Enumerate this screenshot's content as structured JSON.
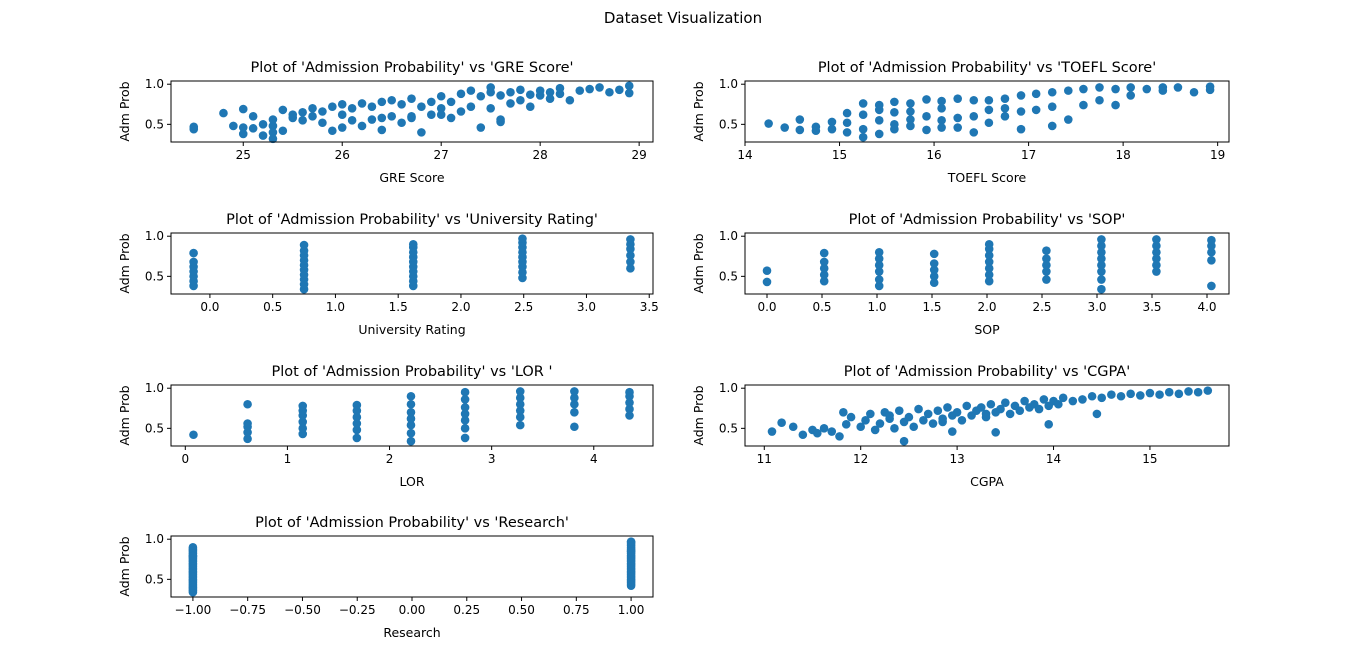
{
  "figure": {
    "title": "Dataset Visualization",
    "marker_color": "#1f77b4"
  },
  "chart_data": [
    {
      "type": "scatter",
      "title": "Plot of 'Admission Probability' vs 'GRE Score'",
      "xlabel": "GRE Score",
      "ylabel": "Adm Prob",
      "xlim": [
        24.27,
        29.14
      ],
      "ylim": [
        0.28,
        1.04
      ],
      "xticks": [
        25,
        26,
        27,
        28,
        29
      ],
      "xtick_labels": [
        "25",
        "26",
        "27",
        "28",
        "29"
      ],
      "yticks": [
        0.5,
        1.0
      ],
      "ytick_labels": [
        "0.5",
        "1.0"
      ],
      "x": [
        24.5,
        24.5,
        24.8,
        24.9,
        25.0,
        25.0,
        25.0,
        25.1,
        25.1,
        25.2,
        25.2,
        25.3,
        25.3,
        25.3,
        25.3,
        25.4,
        25.4,
        25.5,
        25.5,
        25.6,
        25.6,
        25.7,
        25.7,
        25.8,
        25.8,
        25.9,
        25.9,
        26.0,
        26.0,
        26.0,
        26.1,
        26.1,
        26.2,
        26.2,
        26.3,
        26.3,
        26.4,
        26.4,
        26.4,
        26.5,
        26.5,
        26.6,
        26.6,
        26.7,
        26.7,
        26.8,
        26.8,
        26.9,
        26.9,
        27.0,
        27.0,
        27.1,
        27.1,
        27.2,
        27.2,
        27.3,
        27.3,
        27.4,
        27.4,
        27.5,
        27.5,
        27.6,
        27.6,
        27.7,
        27.7,
        27.8,
        27.8,
        27.9,
        27.9,
        28.0,
        28.0,
        28.1,
        28.1,
        28.2,
        28.2,
        28.3,
        28.4,
        28.5,
        28.6,
        28.7,
        28.8,
        28.9,
        28.9,
        27.6,
        27.5,
        27.0,
        26.7
      ],
      "y": [
        0.47,
        0.44,
        0.64,
        0.48,
        0.69,
        0.46,
        0.38,
        0.45,
        0.6,
        0.5,
        0.36,
        0.48,
        0.4,
        0.32,
        0.56,
        0.68,
        0.42,
        0.58,
        0.62,
        0.65,
        0.55,
        0.6,
        0.7,
        0.66,
        0.52,
        0.42,
        0.72,
        0.62,
        0.46,
        0.75,
        0.55,
        0.7,
        0.48,
        0.76,
        0.56,
        0.72,
        0.58,
        0.78,
        0.43,
        0.6,
        0.8,
        0.52,
        0.75,
        0.58,
        0.82,
        0.72,
        0.4,
        0.62,
        0.78,
        0.7,
        0.85,
        0.58,
        0.78,
        0.66,
        0.88,
        0.72,
        0.92,
        0.46,
        0.85,
        0.7,
        0.9,
        0.56,
        0.86,
        0.76,
        0.9,
        0.8,
        0.93,
        0.72,
        0.87,
        0.86,
        0.92,
        0.82,
        0.9,
        0.88,
        0.95,
        0.8,
        0.92,
        0.94,
        0.96,
        0.9,
        0.93,
        0.98,
        0.89,
        0.53,
        0.96,
        0.62,
        0.6
      ]
    },
    {
      "type": "scatter",
      "title": "Plot of 'Admission Probability' vs 'TOEFL Score'",
      "xlabel": "TOEFL Score",
      "ylabel": "Adm Prob",
      "xlim": [
        14.0,
        19.12
      ],
      "ylim": [
        0.28,
        1.04
      ],
      "xticks": [
        14,
        15,
        16,
        17,
        18,
        19
      ],
      "xtick_labels": [
        "14",
        "15",
        "16",
        "17",
        "18",
        "19"
      ],
      "yticks": [
        0.5,
        1.0
      ],
      "ytick_labels": [
        "0.5",
        "1.0"
      ],
      "x": [
        14.25,
        14.42,
        14.58,
        14.58,
        14.75,
        14.75,
        14.92,
        14.92,
        15.08,
        15.08,
        15.08,
        15.25,
        15.25,
        15.25,
        15.25,
        15.42,
        15.42,
        15.42,
        15.42,
        15.58,
        15.58,
        15.58,
        15.58,
        15.75,
        15.75,
        15.75,
        15.75,
        15.92,
        15.92,
        15.92,
        16.08,
        16.08,
        16.08,
        16.08,
        16.25,
        16.25,
        16.25,
        16.42,
        16.42,
        16.42,
        16.58,
        16.58,
        16.58,
        16.75,
        16.75,
        16.75,
        16.92,
        16.92,
        16.92,
        17.08,
        17.08,
        17.25,
        17.25,
        17.25,
        17.42,
        17.42,
        17.58,
        17.58,
        17.75,
        17.75,
        17.92,
        17.92,
        18.08,
        18.08,
        18.25,
        18.42,
        18.42,
        18.58,
        18.75,
        18.92,
        18.92
      ],
      "y": [
        0.51,
        0.46,
        0.56,
        0.43,
        0.47,
        0.42,
        0.53,
        0.44,
        0.64,
        0.4,
        0.52,
        0.76,
        0.44,
        0.34,
        0.62,
        0.74,
        0.38,
        0.55,
        0.68,
        0.78,
        0.5,
        0.44,
        0.65,
        0.76,
        0.56,
        0.48,
        0.66,
        0.81,
        0.6,
        0.43,
        0.79,
        0.55,
        0.46,
        0.7,
        0.82,
        0.58,
        0.46,
        0.8,
        0.6,
        0.4,
        0.8,
        0.52,
        0.68,
        0.82,
        0.6,
        0.7,
        0.86,
        0.66,
        0.44,
        0.88,
        0.68,
        0.9,
        0.72,
        0.48,
        0.92,
        0.56,
        0.94,
        0.74,
        0.96,
        0.8,
        0.94,
        0.74,
        0.96,
        0.86,
        0.94,
        0.96,
        0.92,
        0.96,
        0.9,
        0.97,
        0.93
      ]
    },
    {
      "type": "scatter",
      "title": "Plot of 'Admission Probability' vs 'University Rating'",
      "xlabel": "University Rating",
      "ylabel": "Adm Prob",
      "xlim": [
        -0.31,
        3.53
      ],
      "ylim": [
        0.28,
        1.04
      ],
      "xticks": [
        0.0,
        0.5,
        1.0,
        1.5,
        2.0,
        2.5,
        3.0,
        3.5
      ],
      "xtick_labels": [
        "0.0",
        "0.5",
        "1.0",
        "1.5",
        "2.0",
        "2.5",
        "3.0",
        "3.5"
      ],
      "yticks": [
        0.5,
        1.0
      ],
      "ytick_labels": [
        "0.5",
        "1.0"
      ],
      "x": [
        -0.13,
        -0.13,
        -0.13,
        -0.13,
        -0.13,
        -0.13,
        -0.13,
        0.75,
        0.75,
        0.75,
        0.75,
        0.75,
        0.75,
        0.75,
        0.75,
        0.75,
        0.75,
        1.62,
        1.62,
        1.62,
        1.62,
        1.62,
        1.62,
        1.62,
        1.62,
        1.62,
        1.62,
        2.49,
        2.49,
        2.49,
        2.49,
        2.49,
        2.49,
        2.49,
        2.49,
        2.49,
        3.35,
        3.35,
        3.35,
        3.35,
        3.35,
        3.35
      ],
      "y": [
        0.38,
        0.44,
        0.5,
        0.56,
        0.62,
        0.68,
        0.79,
        0.34,
        0.4,
        0.46,
        0.52,
        0.58,
        0.64,
        0.7,
        0.76,
        0.82,
        0.89,
        0.38,
        0.44,
        0.5,
        0.56,
        0.62,
        0.68,
        0.74,
        0.8,
        0.86,
        0.9,
        0.48,
        0.55,
        0.62,
        0.68,
        0.74,
        0.8,
        0.86,
        0.92,
        0.97,
        0.6,
        0.68,
        0.76,
        0.84,
        0.9,
        0.96
      ]
    },
    {
      "type": "scatter",
      "title": "Plot of 'Admission Probability' vs 'SOP'",
      "xlabel": "SOP",
      "ylabel": "Adm Prob",
      "xlim": [
        -0.2,
        4.2
      ],
      "ylim": [
        0.28,
        1.04
      ],
      "xticks": [
        0.0,
        0.5,
        1.0,
        1.5,
        2.0,
        2.5,
        3.0,
        3.5,
        4.0
      ],
      "xtick_labels": [
        "0.0",
        "0.5",
        "1.0",
        "1.5",
        "2.0",
        "2.5",
        "3.0",
        "3.5",
        "4.0"
      ],
      "yticks": [
        0.5,
        1.0
      ],
      "ytick_labels": [
        "0.5",
        "1.0"
      ],
      "x": [
        0.0,
        0.0,
        0.52,
        0.52,
        0.52,
        0.52,
        0.52,
        1.02,
        1.02,
        1.02,
        1.02,
        1.02,
        1.02,
        1.52,
        1.52,
        1.52,
        1.52,
        1.52,
        2.02,
        2.02,
        2.02,
        2.02,
        2.02,
        2.02,
        2.02,
        2.54,
        2.54,
        2.54,
        2.54,
        2.54,
        3.04,
        3.04,
        3.04,
        3.04,
        3.04,
        3.04,
        3.04,
        3.04,
        3.54,
        3.54,
        3.54,
        3.54,
        3.54,
        3.54,
        4.04,
        4.04,
        4.04,
        4.04,
        4.04
      ],
      "y": [
        0.57,
        0.43,
        0.44,
        0.52,
        0.6,
        0.68,
        0.79,
        0.38,
        0.46,
        0.56,
        0.64,
        0.72,
        0.8,
        0.42,
        0.5,
        0.58,
        0.66,
        0.78,
        0.44,
        0.52,
        0.6,
        0.68,
        0.76,
        0.84,
        0.9,
        0.46,
        0.56,
        0.64,
        0.72,
        0.82,
        0.34,
        0.46,
        0.56,
        0.64,
        0.72,
        0.8,
        0.88,
        0.96,
        0.56,
        0.64,
        0.72,
        0.8,
        0.88,
        0.96,
        0.38,
        0.7,
        0.8,
        0.88,
        0.95
      ]
    },
    {
      "type": "scatter",
      "title": "Plot of 'Admission Probability' vs 'LOR '",
      "xlabel": "LOR",
      "ylabel": "Adm Prob",
      "xlim": [
        -0.14,
        4.58
      ],
      "ylim": [
        0.28,
        1.04
      ],
      "xticks": [
        0,
        1,
        2,
        3,
        4
      ],
      "xtick_labels": [
        "0",
        "1",
        "2",
        "3",
        "4"
      ],
      "yticks": [
        0.5,
        1.0
      ],
      "ytick_labels": [
        "0.5",
        "1.0"
      ],
      "x": [
        0.08,
        0.61,
        0.61,
        0.61,
        0.61,
        0.61,
        1.15,
        1.15,
        1.15,
        1.15,
        1.15,
        1.15,
        1.68,
        1.68,
        1.68,
        1.68,
        1.68,
        1.68,
        2.21,
        2.21,
        2.21,
        2.21,
        2.21,
        2.21,
        2.21,
        2.74,
        2.74,
        2.74,
        2.74,
        2.74,
        2.74,
        2.74,
        3.28,
        3.28,
        3.28,
        3.28,
        3.28,
        3.28,
        3.81,
        3.81,
        3.81,
        3.81,
        3.81,
        4.35,
        4.35,
        4.35,
        4.35,
        4.35
      ],
      "y": [
        0.42,
        0.37,
        0.45,
        0.52,
        0.56,
        0.8,
        0.43,
        0.5,
        0.58,
        0.66,
        0.72,
        0.78,
        0.38,
        0.48,
        0.56,
        0.64,
        0.72,
        0.79,
        0.34,
        0.44,
        0.54,
        0.62,
        0.7,
        0.8,
        0.9,
        0.38,
        0.5,
        0.6,
        0.68,
        0.76,
        0.86,
        0.95,
        0.54,
        0.64,
        0.72,
        0.8,
        0.88,
        0.96,
        0.52,
        0.7,
        0.8,
        0.88,
        0.96,
        0.66,
        0.74,
        0.82,
        0.9,
        0.95
      ]
    },
    {
      "type": "scatter",
      "title": "Plot of 'Admission Probability' vs 'CGPA'",
      "xlabel": "CGPA",
      "ylabel": "Adm Prob",
      "xlim": [
        10.8,
        15.82
      ],
      "ylim": [
        0.28,
        1.04
      ],
      "xticks": [
        11,
        12,
        13,
        14,
        15
      ],
      "xtick_labels": [
        "11",
        "12",
        "13",
        "14",
        "15"
      ],
      "yticks": [
        0.5,
        1.0
      ],
      "ytick_labels": [
        "0.5",
        "1.0"
      ],
      "x": [
        11.08,
        11.18,
        11.3,
        11.4,
        11.5,
        11.55,
        11.62,
        11.7,
        11.78,
        11.82,
        11.85,
        11.9,
        12.0,
        12.05,
        12.1,
        12.15,
        12.2,
        12.25,
        12.3,
        12.35,
        12.4,
        12.45,
        12.5,
        12.55,
        12.6,
        12.65,
        12.7,
        12.75,
        12.8,
        12.85,
        12.9,
        12.95,
        13.0,
        13.05,
        13.1,
        13.15,
        13.2,
        13.25,
        13.3,
        13.35,
        13.4,
        13.45,
        13.5,
        13.55,
        13.6,
        13.65,
        13.7,
        13.75,
        13.8,
        13.85,
        13.9,
        13.95,
        14.0,
        14.05,
        14.1,
        14.2,
        14.3,
        14.4,
        14.45,
        14.5,
        14.6,
        14.7,
        14.8,
        14.9,
        15.0,
        15.1,
        15.2,
        15.3,
        15.4,
        15.5,
        15.6,
        12.45,
        12.95,
        13.4,
        13.95,
        12.3,
        12.85,
        13.3
      ],
      "y": [
        0.46,
        0.57,
        0.52,
        0.42,
        0.48,
        0.44,
        0.5,
        0.46,
        0.4,
        0.7,
        0.55,
        0.64,
        0.52,
        0.6,
        0.68,
        0.48,
        0.56,
        0.7,
        0.62,
        0.5,
        0.72,
        0.58,
        0.64,
        0.52,
        0.74,
        0.6,
        0.68,
        0.56,
        0.72,
        0.62,
        0.76,
        0.66,
        0.7,
        0.6,
        0.78,
        0.66,
        0.72,
        0.76,
        0.64,
        0.8,
        0.7,
        0.74,
        0.82,
        0.68,
        0.78,
        0.72,
        0.84,
        0.76,
        0.8,
        0.74,
        0.86,
        0.78,
        0.84,
        0.8,
        0.88,
        0.84,
        0.86,
        0.9,
        0.68,
        0.88,
        0.92,
        0.9,
        0.93,
        0.91,
        0.94,
        0.92,
        0.95,
        0.93,
        0.96,
        0.95,
        0.97,
        0.34,
        0.46,
        0.45,
        0.55,
        0.66,
        0.58,
        0.68
      ]
    },
    {
      "type": "scatter",
      "title": "Plot of 'Admission Probability' vs 'Research'",
      "xlabel": "Research",
      "ylabel": "Adm Prob",
      "xlim": [
        -1.1,
        1.1
      ],
      "ylim": [
        0.28,
        1.04
      ],
      "xticks": [
        -1.0,
        -0.75,
        -0.5,
        -0.25,
        0.0,
        0.25,
        0.5,
        0.75,
        1.0
      ],
      "xtick_labels": [
        "−1.00",
        "−0.75",
        "−0.50",
        "−0.25",
        "0.00",
        "0.25",
        "0.50",
        "0.75",
        "1.00"
      ],
      "yticks": [
        0.5,
        1.0
      ],
      "ytick_labels": [
        "0.5",
        "1.0"
      ],
      "x": [
        -1.0,
        -1.0,
        -1.0,
        -1.0,
        -1.0,
        -1.0,
        -1.0,
        -1.0,
        -1.0,
        -1.0,
        -1.0,
        -1.0,
        -1.0,
        -1.0,
        -1.0,
        -1.0,
        -1.0,
        -1.0,
        -1.0,
        -1.0,
        -1.0,
        -1.0,
        -1.0,
        -1.0,
        -1.0,
        -1.0,
        -1.0,
        -1.0,
        -1.0,
        -1.0,
        1.0,
        1.0,
        1.0,
        1.0,
        1.0,
        1.0,
        1.0,
        1.0,
        1.0,
        1.0,
        1.0,
        1.0,
        1.0,
        1.0,
        1.0,
        1.0,
        1.0,
        1.0,
        1.0,
        1.0,
        1.0,
        1.0,
        1.0,
        1.0,
        1.0,
        1.0,
        1.0,
        1.0,
        1.0,
        1.0
      ],
      "y": [
        0.34,
        0.36,
        0.38,
        0.4,
        0.42,
        0.44,
        0.46,
        0.48,
        0.5,
        0.52,
        0.54,
        0.56,
        0.58,
        0.6,
        0.62,
        0.64,
        0.66,
        0.68,
        0.7,
        0.72,
        0.74,
        0.76,
        0.78,
        0.8,
        0.82,
        0.84,
        0.86,
        0.88,
        0.9,
        0.79,
        0.42,
        0.44,
        0.46,
        0.48,
        0.5,
        0.52,
        0.54,
        0.56,
        0.58,
        0.6,
        0.62,
        0.64,
        0.66,
        0.68,
        0.7,
        0.72,
        0.74,
        0.76,
        0.78,
        0.8,
        0.82,
        0.84,
        0.86,
        0.88,
        0.9,
        0.92,
        0.94,
        0.96,
        0.97,
        0.85
      ]
    }
  ]
}
